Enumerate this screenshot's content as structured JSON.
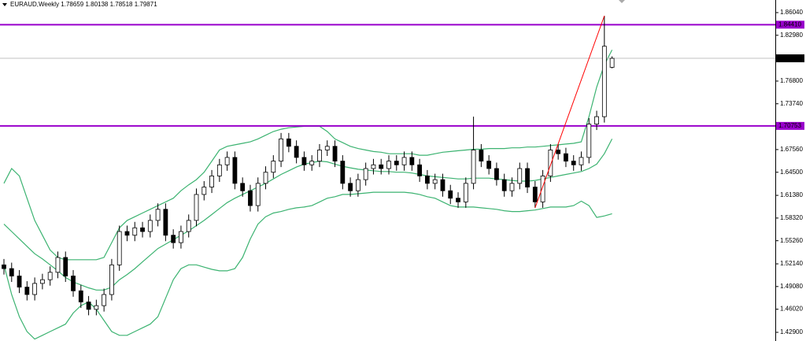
{
  "chart_data": {
    "type": "candlestick",
    "title": "EURAUD,Weekly  1.78659 1.80138 1.78518 1.79871",
    "ylim": [
      1.4173,
      1.8774
    ],
    "yticks": [
      {
        "value": 1.8604,
        "label": "1.86040"
      },
      {
        "value": 1.8298,
        "label": "1.82980"
      },
      {
        "value": 1.768,
        "label": "1.76800"
      },
      {
        "value": 1.7374,
        "label": "1.73740"
      },
      {
        "value": 1.6756,
        "label": "1.67560"
      },
      {
        "value": 1.645,
        "label": "1.64500"
      },
      {
        "value": 1.6138,
        "label": "1.61380"
      },
      {
        "value": 1.5832,
        "label": "1.58320"
      },
      {
        "value": 1.5526,
        "label": "1.55260"
      },
      {
        "value": 1.5214,
        "label": "1.52140"
      },
      {
        "value": 1.4908,
        "label": "1.49080"
      },
      {
        "value": 1.4602,
        "label": "1.46020"
      },
      {
        "value": 1.429,
        "label": "1.42900"
      }
    ],
    "candles": {
      "up_color": "#ffffff",
      "down_color": "#000000",
      "open": [
        1.52,
        1.515,
        1.505,
        1.49,
        1.48,
        1.495,
        1.5,
        1.51,
        1.53,
        1.505,
        1.485,
        1.47,
        1.46,
        1.465,
        1.48,
        1.52,
        1.565,
        1.56,
        1.57,
        1.565,
        1.58,
        1.595,
        1.56,
        1.55,
        1.565,
        1.58,
        1.615,
        1.625,
        1.64,
        1.655,
        1.665,
        1.63,
        1.62,
        1.6,
        1.63,
        1.645,
        1.66,
        1.69,
        1.68,
        1.665,
        1.655,
        1.66,
        1.675,
        1.68,
        1.66,
        1.63,
        1.62,
        1.635,
        1.65,
        1.655,
        1.65,
        1.66,
        1.655,
        1.665,
        1.655,
        1.64,
        1.63,
        1.635,
        1.62,
        1.61,
        1.605,
        1.63,
        1.675,
        1.66,
        1.65,
        1.635,
        1.62,
        1.63,
        1.65,
        1.625,
        1.605,
        1.64,
        1.675,
        1.67,
        1.66,
        1.655,
        1.665,
        1.71,
        1.72,
        1.78659
      ],
      "high": [
        1.528,
        1.523,
        1.513,
        1.498,
        1.503,
        1.508,
        1.518,
        1.538,
        1.538,
        1.513,
        1.493,
        1.478,
        1.473,
        1.488,
        1.528,
        1.573,
        1.573,
        1.578,
        1.578,
        1.588,
        1.603,
        1.603,
        1.568,
        1.573,
        1.588,
        1.623,
        1.633,
        1.648,
        1.663,
        1.673,
        1.673,
        1.638,
        1.628,
        1.638,
        1.653,
        1.668,
        1.698,
        1.698,
        1.688,
        1.673,
        1.668,
        1.683,
        1.688,
        1.688,
        1.668,
        1.638,
        1.643,
        1.658,
        1.663,
        1.663,
        1.668,
        1.668,
        1.673,
        1.673,
        1.663,
        1.648,
        1.643,
        1.643,
        1.628,
        1.618,
        1.638,
        1.72,
        1.683,
        1.668,
        1.658,
        1.643,
        1.638,
        1.658,
        1.658,
        1.633,
        1.648,
        1.683,
        1.683,
        1.678,
        1.668,
        1.673,
        1.718,
        1.728,
        1.856,
        1.80138
      ],
      "low": [
        1.507,
        1.497,
        1.482,
        1.472,
        1.472,
        1.487,
        1.492,
        1.502,
        1.497,
        1.477,
        1.462,
        1.452,
        1.452,
        1.457,
        1.472,
        1.512,
        1.552,
        1.552,
        1.557,
        1.557,
        1.572,
        1.552,
        1.542,
        1.542,
        1.557,
        1.572,
        1.607,
        1.617,
        1.632,
        1.647,
        1.622,
        1.612,
        1.592,
        1.592,
        1.622,
        1.637,
        1.652,
        1.672,
        1.657,
        1.647,
        1.647,
        1.652,
        1.667,
        1.652,
        1.622,
        1.612,
        1.612,
        1.627,
        1.642,
        1.642,
        1.642,
        1.647,
        1.647,
        1.647,
        1.632,
        1.622,
        1.622,
        1.612,
        1.602,
        1.597,
        1.597,
        1.622,
        1.652,
        1.642,
        1.627,
        1.612,
        1.612,
        1.622,
        1.617,
        1.597,
        1.597,
        1.632,
        1.662,
        1.652,
        1.647,
        1.647,
        1.657,
        1.702,
        1.712,
        1.78518
      ],
      "close": [
        1.515,
        1.505,
        1.49,
        1.48,
        1.495,
        1.5,
        1.51,
        1.53,
        1.505,
        1.485,
        1.47,
        1.46,
        1.465,
        1.48,
        1.52,
        1.565,
        1.56,
        1.57,
        1.565,
        1.58,
        1.595,
        1.56,
        1.55,
        1.565,
        1.58,
        1.615,
        1.625,
        1.64,
        1.655,
        1.665,
        1.63,
        1.62,
        1.6,
        1.63,
        1.645,
        1.66,
        1.69,
        1.68,
        1.665,
        1.655,
        1.66,
        1.675,
        1.68,
        1.66,
        1.63,
        1.62,
        1.635,
        1.65,
        1.655,
        1.65,
        1.66,
        1.655,
        1.665,
        1.655,
        1.64,
        1.63,
        1.635,
        1.62,
        1.61,
        1.605,
        1.63,
        1.675,
        1.66,
        1.65,
        1.635,
        1.62,
        1.63,
        1.65,
        1.625,
        1.605,
        1.64,
        1.675,
        1.67,
        1.66,
        1.655,
        1.665,
        1.71,
        1.72,
        1.815,
        1.79871
      ]
    },
    "bands": {
      "color": "#3cb371",
      "upper": [
        1.63,
        1.65,
        1.64,
        1.61,
        1.58,
        1.56,
        1.54,
        1.53,
        1.527,
        1.527,
        1.527,
        1.527,
        1.527,
        1.53,
        1.55,
        1.57,
        1.58,
        1.585,
        1.59,
        1.595,
        1.6,
        1.605,
        1.61,
        1.62,
        1.628,
        1.635,
        1.645,
        1.66,
        1.675,
        1.68,
        1.682,
        1.684,
        1.686,
        1.69,
        1.695,
        1.7,
        1.703,
        1.705,
        1.706,
        1.707,
        1.707,
        1.707,
        1.7,
        1.69,
        1.685,
        1.68,
        1.677,
        1.675,
        1.673,
        1.672,
        1.67,
        1.67,
        1.67,
        1.67,
        1.668,
        1.668,
        1.67,
        1.672,
        1.673,
        1.674,
        1.675,
        1.676,
        1.676,
        1.677,
        1.677,
        1.677,
        1.678,
        1.678,
        1.679,
        1.679,
        1.68,
        1.681,
        1.682,
        1.683,
        1.684,
        1.686,
        1.72,
        1.76,
        1.79,
        1.81
      ],
      "middle": [
        1.575,
        1.565,
        1.555,
        1.545,
        1.535,
        1.528,
        1.52,
        1.512,
        1.503,
        1.497,
        1.493,
        1.489,
        1.486,
        1.486,
        1.49,
        1.5,
        1.507,
        1.515,
        1.524,
        1.533,
        1.542,
        1.548,
        1.554,
        1.56,
        1.566,
        1.573,
        1.58,
        1.588,
        1.596,
        1.604,
        1.61,
        1.615,
        1.62,
        1.625,
        1.63,
        1.636,
        1.642,
        1.647,
        1.652,
        1.656,
        1.658,
        1.66,
        1.659,
        1.656,
        1.653,
        1.651,
        1.649,
        1.648,
        1.647,
        1.646,
        1.646,
        1.645,
        1.645,
        1.644,
        1.642,
        1.64,
        1.639,
        1.638,
        1.637,
        1.636,
        1.636,
        1.637,
        1.637,
        1.637,
        1.636,
        1.635,
        1.634,
        1.633,
        1.633,
        1.634,
        1.636,
        1.638,
        1.64,
        1.642,
        1.644,
        1.646,
        1.65,
        1.656,
        1.67,
        1.69
      ],
      "lower": [
        1.52,
        1.48,
        1.45,
        1.43,
        1.42,
        1.425,
        1.43,
        1.435,
        1.44,
        1.455,
        1.465,
        1.47,
        1.46,
        1.445,
        1.43,
        1.425,
        1.425,
        1.43,
        1.435,
        1.44,
        1.45,
        1.475,
        1.5,
        1.515,
        1.52,
        1.52,
        1.517,
        1.514,
        1.512,
        1.512,
        1.515,
        1.53,
        1.555,
        1.575,
        1.585,
        1.59,
        1.592,
        1.595,
        1.597,
        1.598,
        1.6,
        1.605,
        1.61,
        1.612,
        1.615,
        1.615,
        1.616,
        1.617,
        1.618,
        1.618,
        1.618,
        1.618,
        1.618,
        1.617,
        1.615,
        1.612,
        1.61,
        1.605,
        1.6,
        1.598,
        1.598,
        1.598,
        1.597,
        1.596,
        1.595,
        1.593,
        1.592,
        1.592,
        1.593,
        1.594,
        1.596,
        1.598,
        1.598,
        1.598,
        1.6,
        1.606,
        1.6,
        1.584,
        1.586,
        1.589
      ]
    },
    "trendline": {
      "color": "#ff0000",
      "points": [
        [
          69,
          1.597
        ],
        [
          78,
          1.856
        ]
      ]
    },
    "levels": [
      {
        "value": 1.8441,
        "label": "1.84410",
        "color": "#9900cc"
      },
      {
        "value": 1.70753,
        "label": "1.70753",
        "color": "#9900cc"
      }
    ],
    "price_line": {
      "value": 1.79871,
      "label": "1.79871",
      "color": "#000000"
    }
  }
}
